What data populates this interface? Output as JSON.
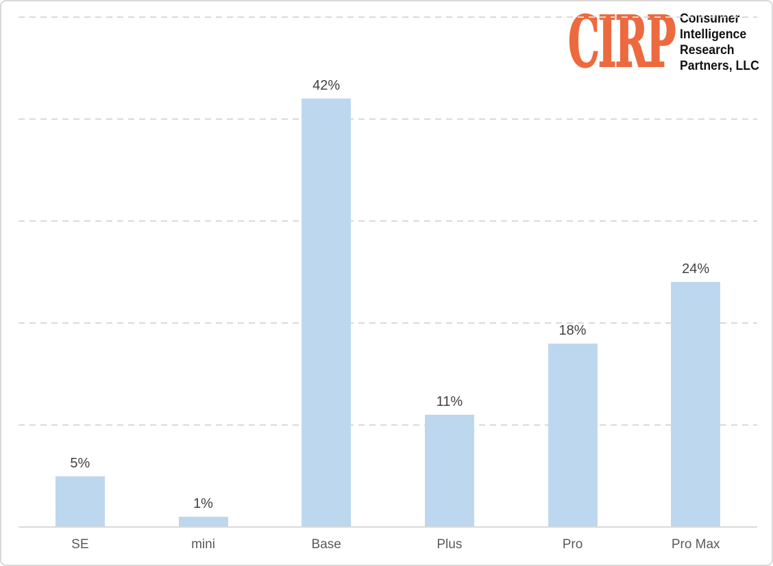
{
  "logo": {
    "acronym": "CIRP",
    "lines": [
      "Consumer",
      "Intelligence",
      "Research",
      "Partners, LLC"
    ],
    "accent_color": "#ed6a3f",
    "text_color": "#111111"
  },
  "chart_data": {
    "type": "bar",
    "categories": [
      "SE",
      "mini",
      "Base",
      "Plus",
      "Pro",
      "Pro Max"
    ],
    "values": [
      5,
      1,
      42,
      11,
      18,
      24
    ],
    "data_labels": [
      "5%",
      "1%",
      "42%",
      "11%",
      "18%",
      "24%"
    ],
    "title": "",
    "xlabel": "",
    "ylabel": "",
    "ylim": [
      0,
      50
    ],
    "gridline_step": 10,
    "grid": "horizontal-dashed",
    "legend": "none",
    "y_axis_labels_visible": false,
    "bar_color": "#bdd7ee",
    "gridline_color": "#d9d9d9",
    "axis_line_color": "#d9d9d9",
    "value_label_color": "#404040",
    "category_label_color": "#595959"
  }
}
